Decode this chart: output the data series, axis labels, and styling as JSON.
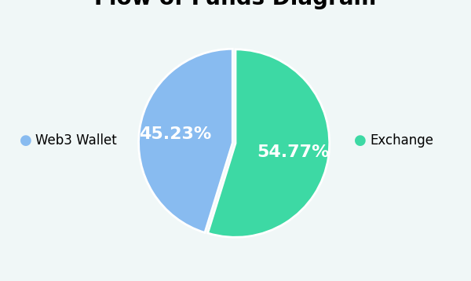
{
  "title_fontsize": 20,
  "title_fontweight": "bold",
  "slices": [
    45.23,
    54.77
  ],
  "labels": [
    "Web3 Wallet",
    "Exchange"
  ],
  "colors": [
    "#88bbf0",
    "#3dd9a4"
  ],
  "autopct_fontsize": 16,
  "autopct_color": "white",
  "legend_fontsize": 12,
  "background_color": "#f0f7f7",
  "startangle": 90,
  "explode": [
    0.03,
    0.0
  ]
}
